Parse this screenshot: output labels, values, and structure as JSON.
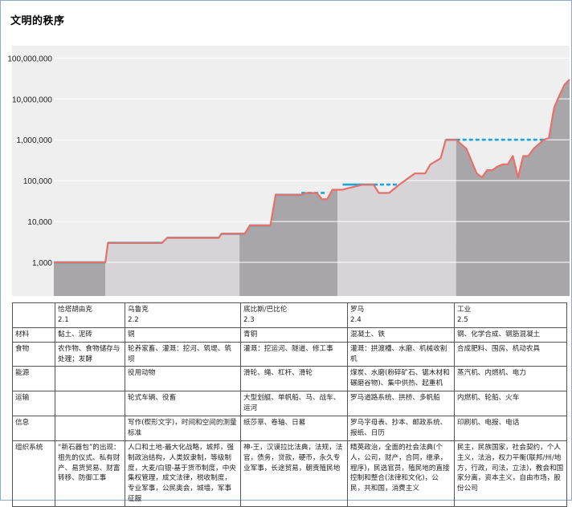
{
  "title": "文明的秩序",
  "chart_data": {
    "type": "area",
    "scale": "log",
    "y_ticks": [
      "100,000,000",
      "10,000,000",
      "1,000,000",
      "100,000",
      "10,000",
      "1,000"
    ],
    "y_tick_values": [
      100000000,
      10000000,
      1000000,
      100000,
      10000,
      1000
    ],
    "ylim": [
      150,
      200000000
    ],
    "xlim": [
      0,
      100
    ],
    "grid": true,
    "colors": {
      "background": "#efefef",
      "era_dark": "#a8a6a9",
      "era_light": "#d6d4d7",
      "line": "#e8706a",
      "plateau": "#1aa6d8",
      "grid": "#ffffff"
    },
    "eras": [
      {
        "label": "2.1",
        "x0": 0,
        "x1": 10
      },
      {
        "label": "2.2",
        "x0": 10,
        "x1": 36
      },
      {
        "label": "2.3",
        "x0": 36,
        "x1": 55
      },
      {
        "label": "2.4",
        "x0": 55,
        "x1": 78
      },
      {
        "label": "2.5",
        "x0": 78,
        "x1": 100
      }
    ],
    "series": [
      {
        "values": [
          [
            0,
            1000
          ],
          [
            10,
            1000
          ],
          [
            10.5,
            3000
          ],
          [
            21,
            3000
          ],
          [
            22,
            4000
          ],
          [
            32,
            4000
          ],
          [
            32.5,
            5000
          ],
          [
            37,
            5000
          ],
          [
            38,
            8000
          ],
          [
            42,
            8000
          ],
          [
            43,
            45000
          ],
          [
            48,
            45000
          ],
          [
            49,
            50000
          ],
          [
            51,
            50000
          ],
          [
            52,
            35000
          ],
          [
            53,
            35000
          ],
          [
            54,
            60000
          ],
          [
            56,
            60000
          ],
          [
            57,
            65000
          ],
          [
            60,
            80000
          ],
          [
            62,
            80000
          ],
          [
            63,
            50000
          ],
          [
            65,
            50000
          ],
          [
            67,
            80000
          ],
          [
            70,
            150000
          ],
          [
            72,
            150000
          ],
          [
            73,
            250000
          ],
          [
            75,
            350000
          ],
          [
            76,
            1000000
          ],
          [
            78,
            1000000
          ],
          [
            80,
            600000
          ],
          [
            82,
            150000
          ],
          [
            83,
            120000
          ],
          [
            84,
            180000
          ],
          [
            85,
            180000
          ],
          [
            86,
            220000
          ],
          [
            87,
            250000
          ],
          [
            88,
            250000
          ],
          [
            89,
            400000
          ],
          [
            90,
            120000
          ],
          [
            91,
            400000
          ],
          [
            92,
            400000
          ],
          [
            93,
            600000
          ],
          [
            95,
            1000000
          ],
          [
            96,
            1100000
          ],
          [
            97,
            6000000
          ],
          [
            98,
            12000000
          ],
          [
            99,
            22000000
          ],
          [
            100,
            30000000
          ]
        ]
      }
    ],
    "plateaus": [
      {
        "x0": 0,
        "x1": 10,
        "y": 1000
      },
      {
        "x0": 10.5,
        "x1": 21,
        "y": 3000
      },
      {
        "x0": 22,
        "x1": 32,
        "y": 4000
      },
      {
        "x0": 32.5,
        "x1": 37,
        "y": 5000
      },
      {
        "x0": 38,
        "x1": 42,
        "y": 8000
      },
      {
        "x0": 43,
        "x1": 48,
        "y": 45000
      },
      {
        "x0": 48,
        "x1": 53,
        "y": 50000,
        "dashed": true
      },
      {
        "x0": 56,
        "x1": 62,
        "y": 80000
      },
      {
        "x0": 62,
        "x1": 67,
        "y": 80000,
        "dashed": true
      },
      {
        "x0": 76,
        "x1": 78,
        "y": 1000000
      },
      {
        "x0": 78,
        "x1": 95,
        "y": 1000000,
        "dashed": true
      }
    ]
  },
  "table": {
    "header": [
      {
        "name": "恰塔胡由克",
        "num": "2.1"
      },
      {
        "name": "乌鲁克",
        "num": "2.2"
      },
      {
        "name": "底比斯/巴比伦",
        "num": "2.3"
      },
      {
        "name": "罗马",
        "num": "2.4"
      },
      {
        "name": "工业",
        "num": "2.5"
      }
    ],
    "rows": [
      {
        "label": "材料",
        "cells": [
          "黏土、泥砖",
          "铜",
          "青铜",
          "混凝土、铁",
          "钢、化学合成、钢筋混凝土"
        ]
      },
      {
        "label": "食物",
        "cells": [
          "农作物、食物储存与处理；发酵",
          "轮养家畜、灌溉：挖河、筑堤、筑坝",
          "灌溉：挖运河、隧道、修工事",
          "灌溉：拱渡槽、水磨、机械收割机",
          "合成肥料、围房、机动农具"
        ]
      },
      {
        "label": "能源",
        "cells": [
          "",
          "役用动物",
          "滑轮、绳、杠杆、滑轮",
          "煤炭、水磨(粉碎矿石、锯木材和碾磨谷物)、集中供热、起重机",
          "蒸汽机、内燃机、电力"
        ]
      },
      {
        "label": "运输",
        "cells": [
          "",
          "轮式车辆、役畜",
          "大型划艇、单帆船、马、战车、运河",
          "罗马道路系统、拱桥、多帆船",
          "内燃机、轮船、火车"
        ]
      },
      {
        "label": "信息",
        "cells": [
          "",
          "写作(楔形文字)，时间和空间的测量标准",
          "纸莎草、卷轴、日晷",
          "罗马字母表、抄本、邮政系统、报纸、日历",
          "印刷机、电报、电话"
        ]
      },
      {
        "label": "组织系统",
        "cells": [
          "“新石器包”的出现：祖先的仪式、私有财产、易货贸易、财富转移、防御工事",
          "人口和土地-最大化战略，城邦，强制政治结构，人类奴隶制，等级制度，大麦/白银-基于货币制度，中央集权管理，成文法律，税收制度，专业军事，公民奥会，城墙，军事征服",
          "神-王，汉谟拉比法典，法规，法官，债务，贷款，硬币，永久专业军事，长途贸易，朝贡殖民地",
          "精英政治，全面的社会法典(个人，公司，财产，合同，继承，程序)，民选官员，殖民地的直接控制和整合(法律和文化)，公民，共和国，消费主义",
          "民主，民族国家，社会契约，个人主义，法治，权力平衡(联邦/州/地方，行政，司法，立法)，教会和国家分离，资本主义，自由市场，股份公司"
        ]
      }
    ]
  }
}
